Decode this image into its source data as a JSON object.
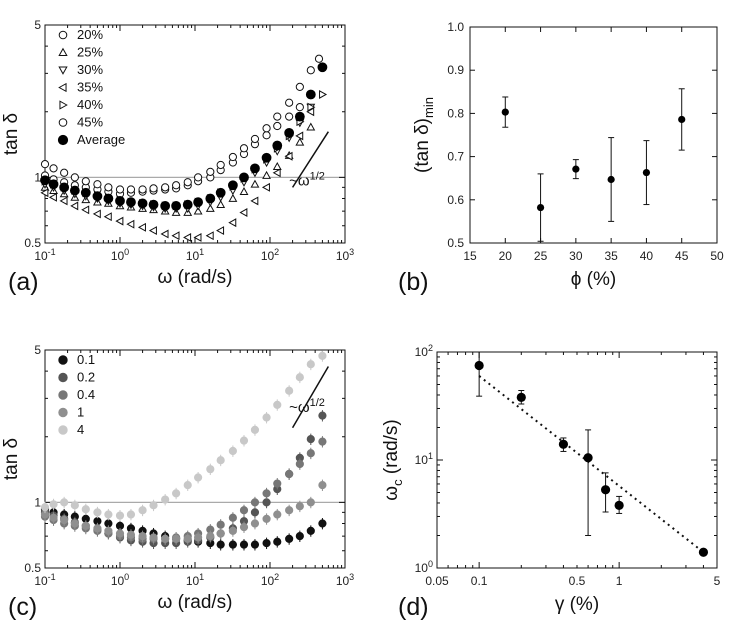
{
  "chart_data": [
    {
      "panel": "(a)",
      "type": "scatter",
      "xlabel": "ω (rad/s)",
      "ylabel": "tan δ",
      "xscale": "log",
      "yscale": "log",
      "xlim": [
        0.1,
        1000
      ],
      "ylim": [
        0.5,
        5
      ],
      "xticks": [
        {
          "v": 0.1,
          "label": "10",
          "exp": "-1"
        },
        {
          "v": 1,
          "label": "10",
          "exp": "0"
        },
        {
          "v": 10,
          "label": "10",
          "exp": "1"
        },
        {
          "v": 100,
          "label": "10",
          "exp": "2"
        },
        {
          "v": 1000,
          "label": "10",
          "exp": "3"
        }
      ],
      "yticks": [
        {
          "v": 0.5,
          "label": "0.5"
        },
        {
          "v": 1,
          "label": "1"
        },
        {
          "v": 5,
          "label": "5"
        }
      ],
      "hline": 1.0,
      "legend_position": "top-left",
      "annotation": {
        "text": "~ω",
        "exp": "1/2",
        "x": 180,
        "y": 0.92
      },
      "slope_line": {
        "x": [
          200,
          600
        ],
        "y": [
          0.9,
          1.62
        ]
      },
      "series": [
        {
          "name": "20%",
          "marker": "circle-open",
          "x": [
            0.1,
            0.13,
            0.18,
            0.25,
            0.35,
            0.5,
            0.7,
            1.0,
            1.4,
            2,
            2.8,
            4,
            5.6,
            8,
            11,
            16,
            22,
            32,
            45,
            63,
            90,
            125,
            180,
            250,
            350
          ],
          "y": [
            1.02,
            0.98,
            0.95,
            0.92,
            0.9,
            0.88,
            0.86,
            0.84,
            0.85,
            0.86,
            0.87,
            0.88,
            0.89,
            0.92,
            0.96,
            1.0,
            1.08,
            1.17,
            1.28,
            1.42,
            1.56,
            1.72,
            1.9,
            2.1,
            2.4
          ]
        },
        {
          "name": "25%",
          "marker": "triangle-up",
          "x": [
            0.1,
            0.13,
            0.18,
            0.25,
            0.35,
            0.5,
            0.7,
            1.0,
            1.4,
            2,
            2.8,
            4,
            5.6,
            8,
            11,
            16,
            22,
            32,
            45,
            63,
            90,
            125,
            180,
            250,
            350
          ],
          "y": [
            0.9,
            0.87,
            0.84,
            0.81,
            0.79,
            0.77,
            0.76,
            0.74,
            0.73,
            0.72,
            0.71,
            0.7,
            0.69,
            0.69,
            0.7,
            0.72,
            0.75,
            0.8,
            0.86,
            0.93,
            1.02,
            1.12,
            1.26,
            1.45,
            1.7
          ]
        },
        {
          "name": "30%",
          "marker": "triangle-down",
          "x": [
            0.1,
            0.13,
            0.18,
            0.25,
            0.35,
            0.5,
            0.7,
            1.0,
            1.4,
            2,
            2.8,
            4,
            5.6,
            8,
            11,
            16,
            22,
            32,
            45,
            63,
            90,
            125,
            180,
            250,
            350
          ],
          "y": [
            0.93,
            0.9,
            0.87,
            0.84,
            0.82,
            0.8,
            0.78,
            0.76,
            0.75,
            0.74,
            0.73,
            0.72,
            0.72,
            0.72,
            0.74,
            0.77,
            0.81,
            0.87,
            0.95,
            1.05,
            1.17,
            1.32,
            1.52,
            1.78,
            2.1
          ]
        },
        {
          "name": "35%",
          "marker": "triangle-left",
          "x": [
            0.1,
            0.13,
            0.18,
            0.25,
            0.35,
            0.5,
            0.7,
            1.0,
            1.4,
            2,
            2.8,
            4,
            5.6,
            8,
            11,
            16,
            22,
            32,
            45,
            63,
            90,
            125,
            180,
            250,
            350
          ],
          "y": [
            0.85,
            0.81,
            0.78,
            0.74,
            0.71,
            0.68,
            0.66,
            0.63,
            0.61,
            0.59,
            0.57,
            0.55,
            0.54,
            0.53,
            0.53,
            0.54,
            0.57,
            0.62,
            0.69,
            0.78,
            0.9,
            1.05,
            1.25,
            1.55,
            2.0
          ]
        },
        {
          "name": "40%",
          "marker": "triangle-right",
          "x": [
            0.1,
            0.13,
            0.18,
            0.25,
            0.35,
            0.5,
            0.7,
            1.0,
            1.4,
            2,
            2.8,
            4,
            5.6,
            8,
            11,
            16,
            22,
            32,
            45,
            63,
            90,
            125,
            180,
            250,
            350,
            500
          ],
          "y": [
            0.96,
            0.93,
            0.9,
            0.87,
            0.85,
            0.83,
            0.81,
            0.79,
            0.77,
            0.76,
            0.75,
            0.74,
            0.74,
            0.75,
            0.77,
            0.8,
            0.85,
            0.91,
            0.99,
            1.09,
            1.21,
            1.36,
            1.55,
            1.8,
            2.1,
            2.4
          ]
        },
        {
          "name": "45%",
          "marker": "circle-open",
          "x": [
            0.1,
            0.13,
            0.18,
            0.25,
            0.35,
            0.5,
            0.7,
            1.0,
            1.4,
            2,
            2.8,
            4,
            5.6,
            8,
            11,
            16,
            22,
            32,
            45,
            63,
            90,
            125,
            180,
            250,
            350,
            450
          ],
          "y": [
            1.15,
            1.1,
            1.05,
            1.0,
            0.96,
            0.93,
            0.9,
            0.88,
            0.88,
            0.88,
            0.89,
            0.9,
            0.92,
            0.95,
            1.0,
            1.06,
            1.14,
            1.24,
            1.36,
            1.5,
            1.68,
            1.9,
            2.2,
            2.6,
            3.1,
            3.5
          ]
        },
        {
          "name": "Average",
          "marker": "circle-filled",
          "x": [
            0.1,
            0.13,
            0.18,
            0.25,
            0.35,
            0.5,
            0.7,
            1.0,
            1.4,
            2,
            2.8,
            4,
            5.6,
            8,
            11,
            16,
            22,
            32,
            45,
            63,
            90,
            125,
            180,
            250,
            350,
            500
          ],
          "y": [
            0.97,
            0.93,
            0.9,
            0.87,
            0.85,
            0.82,
            0.8,
            0.78,
            0.77,
            0.76,
            0.75,
            0.74,
            0.74,
            0.75,
            0.77,
            0.8,
            0.85,
            0.92,
            1.0,
            1.1,
            1.23,
            1.4,
            1.6,
            1.9,
            2.4,
            3.2
          ]
        }
      ]
    },
    {
      "panel": "(b)",
      "type": "scatter",
      "xlabel": "ϕ (%)",
      "ylabel": "(tan δ)",
      "ylabel_sub": "min",
      "xlim": [
        15,
        50
      ],
      "ylim": [
        0.5,
        1.0
      ],
      "xticks": [
        15,
        20,
        25,
        30,
        35,
        40,
        45,
        50
      ],
      "yticks": [
        0.5,
        0.6,
        0.7,
        0.8,
        0.9,
        1.0
      ],
      "ytick_labels": [
        "0.5",
        "0.6",
        "0.7",
        "0.8",
        "0.9",
        "1.0"
      ],
      "x": [
        20,
        25,
        30,
        35,
        40,
        45
      ],
      "y": [
        0.803,
        0.582,
        0.671,
        0.647,
        0.663,
        0.786
      ],
      "yerr": [
        0.035,
        0.078,
        0.022,
        0.097,
        0.074,
        0.071
      ]
    },
    {
      "panel": "(c)",
      "type": "scatter",
      "xlabel": "ω (rad/s)",
      "ylabel": "tan δ",
      "xscale": "log",
      "yscale": "log",
      "xlim": [
        0.1,
        1000
      ],
      "ylim": [
        0.5,
        5
      ],
      "xticks": [
        {
          "v": 0.1,
          "label": "10",
          "exp": "-1"
        },
        {
          "v": 1,
          "label": "10",
          "exp": "0"
        },
        {
          "v": 10,
          "label": "10",
          "exp": "1"
        },
        {
          "v": 100,
          "label": "10",
          "exp": "2"
        },
        {
          "v": 1000,
          "label": "10",
          "exp": "3"
        }
      ],
      "yticks": [
        {
          "v": 0.5,
          "label": "0.5"
        },
        {
          "v": 1,
          "label": "1"
        },
        {
          "v": 5,
          "label": "5"
        }
      ],
      "hline": 1.0,
      "legend_position": "top-left",
      "annotation": {
        "text": "~ω",
        "exp": "1/2",
        "x": 180,
        "y": 2.6
      },
      "slope_line": {
        "x": [
          200,
          600
        ],
        "y": [
          2.2,
          4.2
        ]
      },
      "series": [
        {
          "name": "0.1",
          "color": "#111111",
          "x": [
            0.1,
            0.13,
            0.18,
            0.25,
            0.35,
            0.5,
            0.7,
            1.0,
            1.4,
            2,
            2.8,
            4,
            5.6,
            8,
            11,
            16,
            22,
            32,
            45,
            63,
            90,
            125,
            180,
            250,
            350,
            500
          ],
          "y": [
            0.93,
            0.9,
            0.88,
            0.86,
            0.84,
            0.82,
            0.8,
            0.78,
            0.76,
            0.74,
            0.72,
            0.7,
            0.68,
            0.67,
            0.66,
            0.65,
            0.64,
            0.64,
            0.64,
            0.64,
            0.65,
            0.66,
            0.68,
            0.7,
            0.74,
            0.8
          ]
        },
        {
          "name": "0.2",
          "color": "#555555",
          "x": [
            0.1,
            0.13,
            0.18,
            0.25,
            0.35,
            0.5,
            0.7,
            1.0,
            1.4,
            2,
            2.8,
            4,
            5.6,
            8,
            11,
            16,
            22,
            32,
            45,
            63,
            90,
            125,
            180,
            250,
            350,
            500
          ],
          "y": [
            0.9,
            0.87,
            0.84,
            0.81,
            0.78,
            0.75,
            0.72,
            0.69,
            0.67,
            0.66,
            0.65,
            0.65,
            0.65,
            0.66,
            0.67,
            0.69,
            0.72,
            0.76,
            0.82,
            0.9,
            1.0,
            1.15,
            1.35,
            1.6,
            1.95,
            2.5
          ]
        },
        {
          "name": "0.4",
          "color": "#777777",
          "x": [
            0.1,
            0.13,
            0.18,
            0.25,
            0.35,
            0.5,
            0.7,
            1.0,
            1.4,
            2,
            2.8,
            4,
            5.6,
            8,
            11,
            16,
            22,
            32,
            45,
            63,
            90,
            125,
            180,
            250,
            350,
            500
          ],
          "y": [
            0.86,
            0.83,
            0.8,
            0.78,
            0.76,
            0.74,
            0.72,
            0.7,
            0.69,
            0.68,
            0.68,
            0.68,
            0.69,
            0.7,
            0.72,
            0.75,
            0.79,
            0.85,
            0.92,
            1.0,
            1.1,
            1.22,
            1.35,
            1.5,
            1.68,
            1.9
          ]
        },
        {
          "name": "1",
          "color": "#8f8f8f",
          "x": [
            0.1,
            0.13,
            0.18,
            0.25,
            0.35,
            0.5,
            0.7,
            1.0,
            1.4,
            2,
            2.8,
            4,
            5.6,
            8,
            11,
            16,
            22,
            32,
            45,
            63,
            90,
            125,
            180,
            250,
            350,
            500
          ],
          "y": [
            0.88,
            0.85,
            0.83,
            0.8,
            0.78,
            0.76,
            0.74,
            0.72,
            0.71,
            0.7,
            0.69,
            0.68,
            0.68,
            0.68,
            0.69,
            0.7,
            0.72,
            0.74,
            0.77,
            0.8,
            0.84,
            0.88,
            0.92,
            0.96,
            1.0,
            1.2
          ]
        },
        {
          "name": "4",
          "color": "#c8c8c8",
          "x": [
            0.1,
            0.13,
            0.18,
            0.25,
            0.35,
            0.5,
            0.7,
            1.0,
            1.4,
            2,
            2.8,
            4,
            5.6,
            8,
            11,
            16,
            22,
            32,
            45,
            63,
            90,
            125,
            180,
            250,
            350,
            500
          ],
          "y": [
            0.95,
            0.98,
            1.0,
            0.97,
            0.93,
            0.9,
            0.88,
            0.87,
            0.88,
            0.92,
            0.97,
            1.03,
            1.1,
            1.2,
            1.3,
            1.42,
            1.56,
            1.72,
            1.92,
            2.15,
            2.45,
            2.8,
            3.25,
            3.75,
            4.3,
            4.7
          ]
        }
      ]
    },
    {
      "panel": "(d)",
      "type": "scatter",
      "xlabel": "γ (%)",
      "ylabel": "ω",
      "ylabel_sub": "c",
      "ylabel_tail": " (rad/s)",
      "xscale": "log",
      "yscale": "log",
      "xlim": [
        0.05,
        5
      ],
      "ylim": [
        1,
        100
      ],
      "xticks": [
        {
          "v": 0.05,
          "label": "0.05"
        },
        {
          "v": 0.1,
          "label": "0.1"
        },
        {
          "v": 0.5,
          "label": "0.5"
        },
        {
          "v": 1,
          "label": "1"
        },
        {
          "v": 5,
          "label": "5"
        }
      ],
      "yticks": [
        {
          "v": 1,
          "label": "10",
          "exp": "0"
        },
        {
          "v": 10,
          "label": "10",
          "exp": "1"
        },
        {
          "v": 100,
          "label": "10",
          "exp": "2"
        }
      ],
      "x": [
        0.1,
        0.2,
        0.4,
        0.6,
        0.8,
        1.0,
        4.0
      ],
      "y": [
        75,
        38,
        14,
        10.5,
        5.3,
        3.8,
        1.4
      ],
      "yerr_low": [
        36,
        5,
        2,
        8.5,
        2.0,
        0.6,
        0.05
      ],
      "yerr_high": [
        25,
        6,
        2,
        8.5,
        2.3,
        0.8,
        0.05
      ],
      "fit_line": {
        "x": [
          0.1,
          4.0
        ],
        "y": [
          60,
          1.4
        ]
      }
    }
  ],
  "labels": {
    "panel_a": "(a)",
    "panel_b": "(b)",
    "panel_c": "(c)",
    "panel_d": "(d)"
  }
}
